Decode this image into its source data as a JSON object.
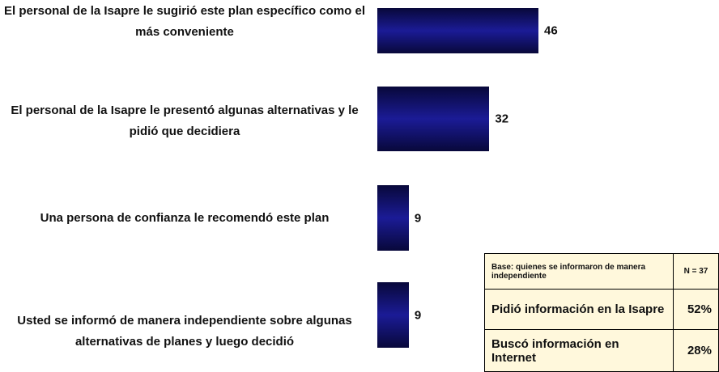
{
  "chart_data": {
    "type": "bar",
    "orientation": "horizontal",
    "categories": [
      "El personal de la Isapre le sugirió este plan específico como el más conveniente",
      "El personal de la Isapre le presentó algunas alternativas y le pidió que decidiera",
      "Una persona de confianza le recomendó este plan",
      "Usted se informó de manera independiente sobre algunas alternativas de planes y luego decidió"
    ],
    "values": [
      46,
      32,
      9,
      9
    ],
    "color": "#1b1b96"
  },
  "table": {
    "header": [
      "Base: quienes se informaron de manera independiente",
      "N = 37"
    ],
    "rows": [
      [
        "Pidió información en la Isapre",
        "52%"
      ],
      [
        "Buscó información en Internet",
        "28%"
      ]
    ]
  }
}
